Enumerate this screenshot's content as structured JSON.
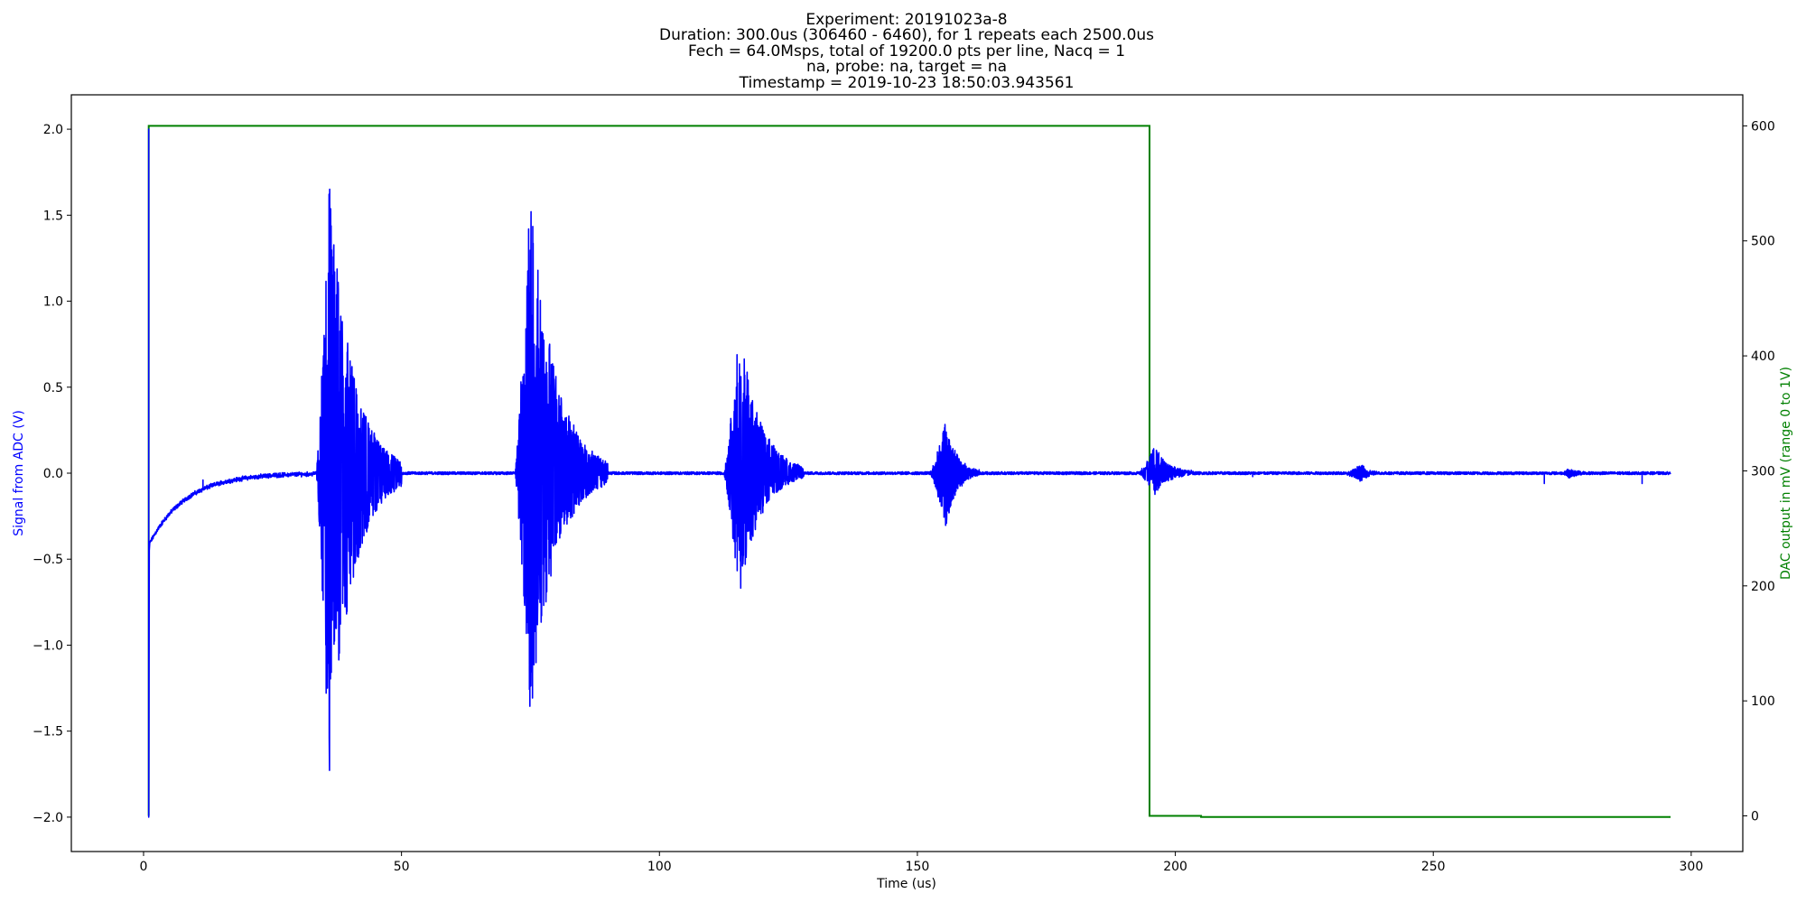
{
  "chart_data": {
    "type": "line",
    "title_lines": [
      "Experiment: 20191023a-8",
      "Duration: 300.0us (306460 - 6460), for 1 repeats each 2500.0us",
      "Fech = 64.0Msps, total of 19200.0 pts per line, Nacq = 1",
      "na, probe: na, target = na",
      "Timestamp = 2019-10-23 18:50:03.943561"
    ],
    "xlabel": "Time (us)",
    "ylabel_left": "Signal from ADC (V)",
    "ylabel_right": "DAC output in mV (range 0 to 1V)",
    "xlim": [
      -14,
      310
    ],
    "ylim_left": [
      -2.2,
      2.2
    ],
    "ylim_right": [
      -31,
      627
    ],
    "x_ticks": [
      0,
      50,
      100,
      150,
      200,
      250,
      300
    ],
    "x_tick_labels": [
      "0",
      "50",
      "100",
      "150",
      "200",
      "250",
      "300"
    ],
    "y_left_ticks": [
      2.0,
      1.5,
      1.0,
      0.5,
      0.0,
      -0.5,
      -1.0,
      -1.5,
      -2.0
    ],
    "y_left_tick_labels": [
      "2.0",
      "1.5",
      "1.0",
      "0.5",
      "0.0",
      "−0.5",
      "−1.0",
      "−1.5",
      "−2.0"
    ],
    "y_right_ticks": [
      600,
      500,
      400,
      300,
      200,
      100,
      0
    ],
    "y_right_tick_labels": [
      "600",
      "500",
      "400",
      "300",
      "200",
      "100",
      "0"
    ],
    "colors": {
      "adc": "#0000ff",
      "dac": "#008000",
      "axis": "#000000"
    },
    "series": [
      {
        "axis": "left",
        "color": "#0000ff",
        "initial_spike": {
          "x": 1.0,
          "max": 2.0,
          "min": -2.0,
          "start": -0.45
        },
        "decay": {
          "x_start": 1.0,
          "x_end": 33,
          "y_start": -0.42,
          "tau_us": 7,
          "ripple": 0.015,
          "tick_x": 11.5,
          "tick_y": -0.04
        },
        "noise_amplitude": 0.008,
        "bursts": [
          {
            "start": 33.5,
            "end": 50.0,
            "peak": 36.0,
            "pos_amp": 1.7,
            "neg_amp": 1.8
          },
          {
            "start": 72.0,
            "end": 90.0,
            "peak": 75.0,
            "pos_amp": 1.65,
            "neg_amp": 1.44
          },
          {
            "start": 112.5,
            "end": 128.0,
            "peak": 115.5,
            "pos_amp": 0.86,
            "neg_amp": 0.73
          },
          {
            "start": 152.5,
            "end": 162.0,
            "peak": 155.5,
            "pos_amp": 0.31,
            "neg_amp": 0.32
          },
          {
            "start": 193.0,
            "end": 204.0,
            "peak": 196.0,
            "pos_amp": 0.16,
            "neg_amp": 0.12
          },
          {
            "start": 233.0,
            "end": 240.0,
            "peak": 236.0,
            "pos_amp": 0.05,
            "neg_amp": 0.05
          },
          {
            "start": 275.0,
            "end": 280.0,
            "peak": 276.5,
            "pos_amp": 0.03,
            "neg_amp": 0.03
          }
        ],
        "spikes": [
          {
            "x": 215.0,
            "v": -0.02
          },
          {
            "x": 271.5,
            "v": -0.06
          },
          {
            "x": 290.5,
            "v": -0.06
          }
        ],
        "x_end": 296.0
      },
      {
        "axis": "right",
        "color": "#008000",
        "points": [
          [
            1.0,
            0
          ],
          [
            1.0,
            600
          ],
          [
            195.0,
            600
          ],
          [
            195.0,
            0
          ],
          [
            205.0,
            0
          ],
          [
            205.0,
            -1
          ],
          [
            296.0,
            -1
          ]
        ]
      }
    ]
  }
}
